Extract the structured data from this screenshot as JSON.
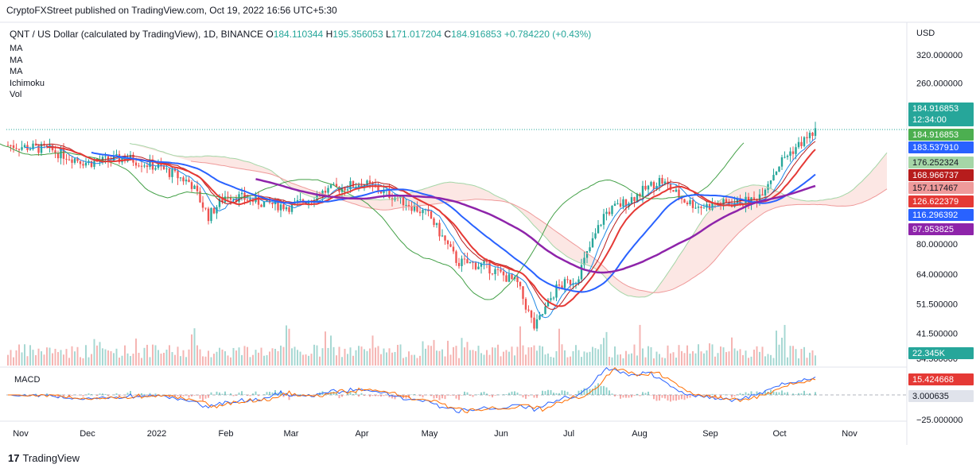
{
  "header": {
    "publisher_line": "CryptoFXStreet published on TradingView.com, Oct 19, 2022 16:56 UTC+5:30"
  },
  "symbol": {
    "name": "QNT / US Dollar (calculated by TradingView), 1D, BINANCE",
    "o_label": "O",
    "o": "184.110344",
    "h_label": "H",
    "h": "195.356053",
    "l_label": "L",
    "l": "171.017204",
    "c_label": "C",
    "c": "184.916853",
    "change": "+0.784220 (+0.43%)"
  },
  "indicators": [
    "MA",
    "MA",
    "MA",
    "Ichimoku",
    "Vol"
  ],
  "macd_label": "MACD",
  "currency": "USD",
  "footer": {
    "brand": "TradingView",
    "logo_mark": "17"
  },
  "colors": {
    "up": "#26a69a",
    "down": "#ef5350",
    "ma_fast": "#e53935",
    "ma_mid": "#2962ff",
    "ma_slow": "#8e24aa",
    "lagging": "#43a047",
    "base_line": "#b71c1c",
    "conversion": "#1e88e5"
  },
  "chart_data": {
    "type": "candlestick",
    "y_scale": "log",
    "x_ticks": [
      "Nov",
      "Dec",
      "2022",
      "Feb",
      "Mar",
      "Apr",
      "May",
      "Jun",
      "Jul",
      "Aug",
      "Sep",
      "Oct",
      "Nov"
    ],
    "y_ticks": [
      "320.000000",
      "260.000000",
      "80.000000",
      "64.000000",
      "51.500000",
      "41.500000",
      "34.500000"
    ],
    "macd_ticks": [
      "−25.000000"
    ],
    "price_tags": [
      {
        "value": "184.916853",
        "sub": "12:34:00",
        "color": "#26a69a"
      },
      {
        "value": "184.916853",
        "color": "#4caf50"
      },
      {
        "value": "183.537910",
        "color": "#2962ff"
      },
      {
        "value": "176.252324",
        "color": "#a5d6a7"
      },
      {
        "value": "168.966737",
        "color": "#b71c1c"
      },
      {
        "value": "157.117467",
        "color": "#ef9a9a"
      },
      {
        "value": "126.622379",
        "color": "#e53935"
      },
      {
        "value": "116.296392",
        "color": "#2962ff"
      },
      {
        "value": "97.953825",
        "color": "#8e24aa"
      },
      {
        "value": "22.345K",
        "color": "#26a69a"
      },
      {
        "value": "15.424668",
        "color": "#e53935"
      },
      {
        "value": "3.000635",
        "color": "#e0e3eb"
      }
    ],
    "closes_by_month": [
      {
        "label": "Nov",
        "close": 165
      },
      {
        "label": "Dec",
        "close": 145
      },
      {
        "label": "2022",
        "close": 150
      },
      {
        "label": "Feb",
        "close": 115
      },
      {
        "label": "Mar",
        "close": 105
      },
      {
        "label": "Apr",
        "close": 125
      },
      {
        "label": "May",
        "close": 98
      },
      {
        "label": "Jun",
        "close": 65
      },
      {
        "label": "Jul",
        "close": 65
      },
      {
        "label": "Aug",
        "close": 108
      },
      {
        "label": "Sep",
        "close": 105
      },
      {
        "label": "Oct",
        "close": 150
      }
    ]
  }
}
